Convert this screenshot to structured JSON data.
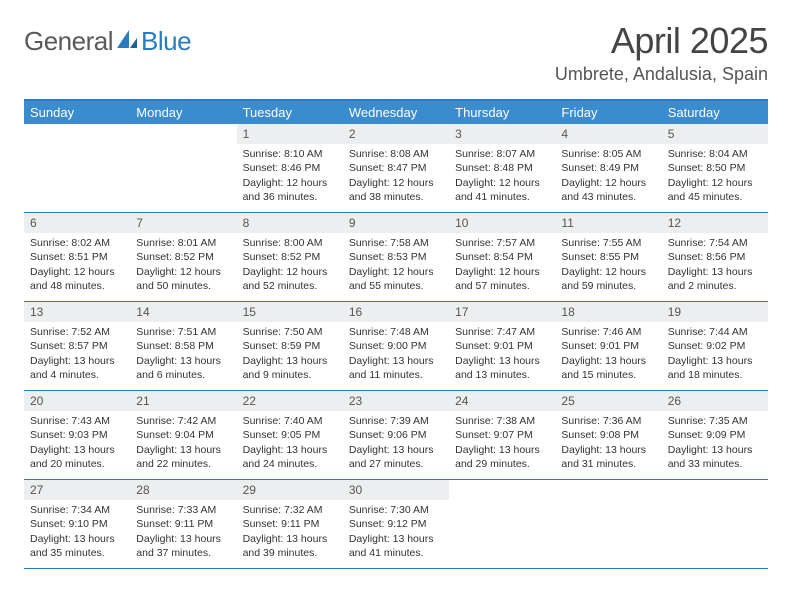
{
  "brand": {
    "text1": "General",
    "text2": "Blue"
  },
  "title": "April 2025",
  "location": "Umbrete, Andalusia, Spain",
  "colors": {
    "header_bg": "#3b8bcf",
    "accent": "#2b7bbf",
    "daynum_bg": "#eceeef",
    "text_dark": "#333333",
    "text_muted": "#555555"
  },
  "weekdays": [
    "Sunday",
    "Monday",
    "Tuesday",
    "Wednesday",
    "Thursday",
    "Friday",
    "Saturday"
  ],
  "weeks": [
    [
      {
        "empty": true
      },
      {
        "empty": true
      },
      {
        "num": "1",
        "sunrise": "Sunrise: 8:10 AM",
        "sunset": "Sunset: 8:46 PM",
        "daylight1": "Daylight: 12 hours",
        "daylight2": "and 36 minutes."
      },
      {
        "num": "2",
        "sunrise": "Sunrise: 8:08 AM",
        "sunset": "Sunset: 8:47 PM",
        "daylight1": "Daylight: 12 hours",
        "daylight2": "and 38 minutes."
      },
      {
        "num": "3",
        "sunrise": "Sunrise: 8:07 AM",
        "sunset": "Sunset: 8:48 PM",
        "daylight1": "Daylight: 12 hours",
        "daylight2": "and 41 minutes."
      },
      {
        "num": "4",
        "sunrise": "Sunrise: 8:05 AM",
        "sunset": "Sunset: 8:49 PM",
        "daylight1": "Daylight: 12 hours",
        "daylight2": "and 43 minutes."
      },
      {
        "num": "5",
        "sunrise": "Sunrise: 8:04 AM",
        "sunset": "Sunset: 8:50 PM",
        "daylight1": "Daylight: 12 hours",
        "daylight2": "and 45 minutes."
      }
    ],
    [
      {
        "num": "6",
        "sunrise": "Sunrise: 8:02 AM",
        "sunset": "Sunset: 8:51 PM",
        "daylight1": "Daylight: 12 hours",
        "daylight2": "and 48 minutes."
      },
      {
        "num": "7",
        "sunrise": "Sunrise: 8:01 AM",
        "sunset": "Sunset: 8:52 PM",
        "daylight1": "Daylight: 12 hours",
        "daylight2": "and 50 minutes."
      },
      {
        "num": "8",
        "sunrise": "Sunrise: 8:00 AM",
        "sunset": "Sunset: 8:52 PM",
        "daylight1": "Daylight: 12 hours",
        "daylight2": "and 52 minutes."
      },
      {
        "num": "9",
        "sunrise": "Sunrise: 7:58 AM",
        "sunset": "Sunset: 8:53 PM",
        "daylight1": "Daylight: 12 hours",
        "daylight2": "and 55 minutes."
      },
      {
        "num": "10",
        "sunrise": "Sunrise: 7:57 AM",
        "sunset": "Sunset: 8:54 PM",
        "daylight1": "Daylight: 12 hours",
        "daylight2": "and 57 minutes."
      },
      {
        "num": "11",
        "sunrise": "Sunrise: 7:55 AM",
        "sunset": "Sunset: 8:55 PM",
        "daylight1": "Daylight: 12 hours",
        "daylight2": "and 59 minutes."
      },
      {
        "num": "12",
        "sunrise": "Sunrise: 7:54 AM",
        "sunset": "Sunset: 8:56 PM",
        "daylight1": "Daylight: 13 hours",
        "daylight2": "and 2 minutes."
      }
    ],
    [
      {
        "num": "13",
        "sunrise": "Sunrise: 7:52 AM",
        "sunset": "Sunset: 8:57 PM",
        "daylight1": "Daylight: 13 hours",
        "daylight2": "and 4 minutes."
      },
      {
        "num": "14",
        "sunrise": "Sunrise: 7:51 AM",
        "sunset": "Sunset: 8:58 PM",
        "daylight1": "Daylight: 13 hours",
        "daylight2": "and 6 minutes."
      },
      {
        "num": "15",
        "sunrise": "Sunrise: 7:50 AM",
        "sunset": "Sunset: 8:59 PM",
        "daylight1": "Daylight: 13 hours",
        "daylight2": "and 9 minutes."
      },
      {
        "num": "16",
        "sunrise": "Sunrise: 7:48 AM",
        "sunset": "Sunset: 9:00 PM",
        "daylight1": "Daylight: 13 hours",
        "daylight2": "and 11 minutes."
      },
      {
        "num": "17",
        "sunrise": "Sunrise: 7:47 AM",
        "sunset": "Sunset: 9:01 PM",
        "daylight1": "Daylight: 13 hours",
        "daylight2": "and 13 minutes."
      },
      {
        "num": "18",
        "sunrise": "Sunrise: 7:46 AM",
        "sunset": "Sunset: 9:01 PM",
        "daylight1": "Daylight: 13 hours",
        "daylight2": "and 15 minutes."
      },
      {
        "num": "19",
        "sunrise": "Sunrise: 7:44 AM",
        "sunset": "Sunset: 9:02 PM",
        "daylight1": "Daylight: 13 hours",
        "daylight2": "and 18 minutes."
      }
    ],
    [
      {
        "num": "20",
        "sunrise": "Sunrise: 7:43 AM",
        "sunset": "Sunset: 9:03 PM",
        "daylight1": "Daylight: 13 hours",
        "daylight2": "and 20 minutes."
      },
      {
        "num": "21",
        "sunrise": "Sunrise: 7:42 AM",
        "sunset": "Sunset: 9:04 PM",
        "daylight1": "Daylight: 13 hours",
        "daylight2": "and 22 minutes."
      },
      {
        "num": "22",
        "sunrise": "Sunrise: 7:40 AM",
        "sunset": "Sunset: 9:05 PM",
        "daylight1": "Daylight: 13 hours",
        "daylight2": "and 24 minutes."
      },
      {
        "num": "23",
        "sunrise": "Sunrise: 7:39 AM",
        "sunset": "Sunset: 9:06 PM",
        "daylight1": "Daylight: 13 hours",
        "daylight2": "and 27 minutes."
      },
      {
        "num": "24",
        "sunrise": "Sunrise: 7:38 AM",
        "sunset": "Sunset: 9:07 PM",
        "daylight1": "Daylight: 13 hours",
        "daylight2": "and 29 minutes."
      },
      {
        "num": "25",
        "sunrise": "Sunrise: 7:36 AM",
        "sunset": "Sunset: 9:08 PM",
        "daylight1": "Daylight: 13 hours",
        "daylight2": "and 31 minutes."
      },
      {
        "num": "26",
        "sunrise": "Sunrise: 7:35 AM",
        "sunset": "Sunset: 9:09 PM",
        "daylight1": "Daylight: 13 hours",
        "daylight2": "and 33 minutes."
      }
    ],
    [
      {
        "num": "27",
        "sunrise": "Sunrise: 7:34 AM",
        "sunset": "Sunset: 9:10 PM",
        "daylight1": "Daylight: 13 hours",
        "daylight2": "and 35 minutes."
      },
      {
        "num": "28",
        "sunrise": "Sunrise: 7:33 AM",
        "sunset": "Sunset: 9:11 PM",
        "daylight1": "Daylight: 13 hours",
        "daylight2": "and 37 minutes."
      },
      {
        "num": "29",
        "sunrise": "Sunrise: 7:32 AM",
        "sunset": "Sunset: 9:11 PM",
        "daylight1": "Daylight: 13 hours",
        "daylight2": "and 39 minutes."
      },
      {
        "num": "30",
        "sunrise": "Sunrise: 7:30 AM",
        "sunset": "Sunset: 9:12 PM",
        "daylight1": "Daylight: 13 hours",
        "daylight2": "and 41 minutes."
      },
      {
        "empty": true
      },
      {
        "empty": true
      },
      {
        "empty": true
      }
    ]
  ]
}
